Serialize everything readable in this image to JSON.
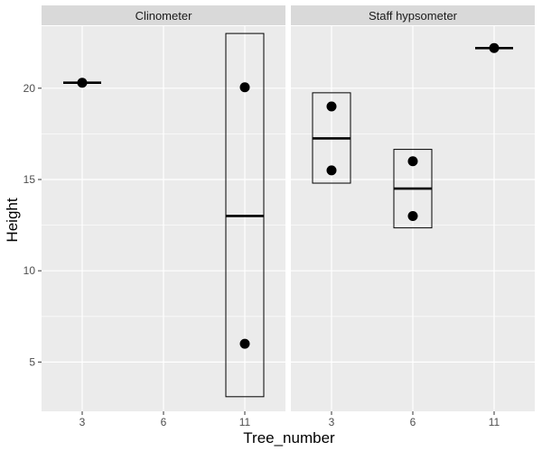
{
  "chart_data": {
    "type": "boxplot-dot",
    "xlabel": "Tree_number",
    "ylabel": "Height",
    "x_categories": [
      "3",
      "6",
      "11"
    ],
    "ylim": [
      2.3,
      23.4
    ],
    "y_ticks": [
      "5",
      "10",
      "15",
      "20"
    ],
    "grid": true,
    "panels": [
      {
        "strip": "Clinometer",
        "groups": [
          {
            "x": "3",
            "q1": 20.3,
            "median": 20.3,
            "q3": 20.3,
            "points": [
              20.3
            ]
          },
          {
            "x": "6",
            "points": []
          },
          {
            "x": "11",
            "q1": 3.1,
            "median": 13.0,
            "q3": 23.0,
            "points": [
              20.05,
              6.0
            ]
          }
        ]
      },
      {
        "strip": "Staff hypsometer",
        "groups": [
          {
            "x": "3",
            "q1": 14.8,
            "median": 17.25,
            "q3": 19.75,
            "points": [
              19.0,
              15.5
            ]
          },
          {
            "x": "6",
            "q1": 12.35,
            "median": 14.5,
            "q3": 16.65,
            "points": [
              16.0,
              13.0
            ]
          },
          {
            "x": "11",
            "q1": 22.2,
            "median": 22.2,
            "q3": 22.2,
            "points": [
              22.2
            ]
          }
        ]
      }
    ]
  }
}
